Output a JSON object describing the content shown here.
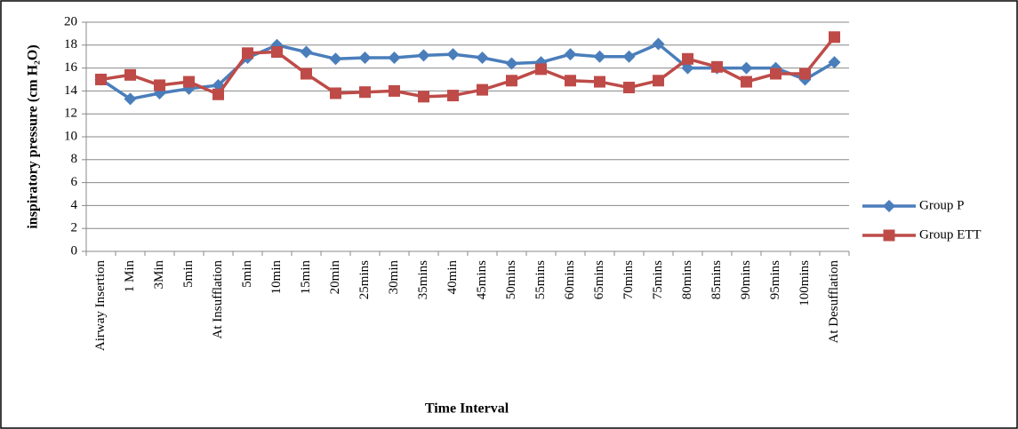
{
  "chart_data": {
    "type": "line",
    "x_label": "Time Interval",
    "y_label": "inspiratory pressure (cm H₂O)",
    "categories": [
      "Airway Insertion",
      "1 Min",
      "3Min",
      "5min",
      "At Insufflation",
      "5min",
      "10min",
      "15min",
      "20min",
      "25mins",
      "30min",
      "35mins",
      "40min",
      "45mins",
      "50mins",
      "55mins",
      "60mins",
      "65mins",
      "70mins",
      "75mins",
      "80mins",
      "85mins",
      "90mins",
      "95mins",
      "100mins",
      "At Desufflation"
    ],
    "series": [
      {
        "name": "Group P",
        "color": "#4a7ebb",
        "marker": "diamond",
        "values": [
          15,
          13.3,
          13.8,
          14.2,
          14.5,
          16.9,
          18,
          17.4,
          16.8,
          16.9,
          16.9,
          17.1,
          17.2,
          16.9,
          16.4,
          16.5,
          17.2,
          17,
          17,
          18.1,
          16,
          16,
          16,
          16,
          15,
          16.5
        ]
      },
      {
        "name": "Group ETT",
        "color": "#be4b48",
        "marker": "square",
        "values": [
          15,
          15.4,
          14.5,
          14.8,
          13.7,
          17.3,
          17.4,
          15.5,
          13.8,
          13.9,
          14,
          13.5,
          13.6,
          14.1,
          14.9,
          15.9,
          14.9,
          14.8,
          14.3,
          14.9,
          16.8,
          16.1,
          14.8,
          15.5,
          15.5,
          18.7
        ]
      }
    ],
    "ylim": [
      0,
      20
    ],
    "yticks": [
      0,
      2,
      4,
      6,
      8,
      10,
      12,
      14,
      16,
      18,
      20
    ],
    "grid": true,
    "legend": "right"
  }
}
